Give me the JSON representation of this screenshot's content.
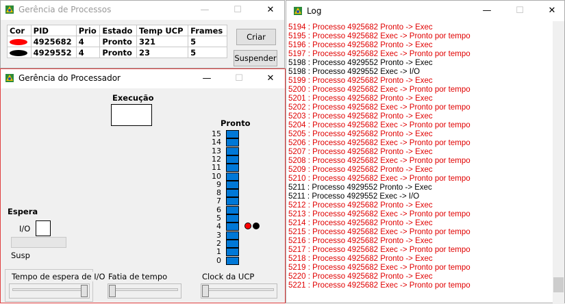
{
  "proc_window": {
    "title": "Gerência de Processos",
    "headers": [
      "Cor",
      "PID",
      "Prio",
      "Estado",
      "Temp UCP",
      "Frames"
    ],
    "rows": [
      {
        "color": "#ff0000",
        "pid": "4925682",
        "prio": "4",
        "estado": "Pronto",
        "temp": "321",
        "frames": "5"
      },
      {
        "color": "#000000",
        "pid": "4929552",
        "prio": "4",
        "estado": "Pronto",
        "temp": "23",
        "frames": "5"
      }
    ],
    "btn_criar": "Criar",
    "btn_suspender": "Suspender"
  },
  "cpu_window": {
    "title": "Gerência do Processador",
    "execucao_label": "Execução",
    "pronto_label": "Pronto",
    "espera_label": "Espera",
    "io_label": "I/O",
    "susp_label": "Susp",
    "queue_numbers": [
      "15",
      "14",
      "13",
      "12",
      "11",
      "10",
      "9",
      "8",
      "7",
      "6",
      "5",
      "4",
      "3",
      "2",
      "1",
      "0"
    ],
    "slider_io_label": "Tempo de espera de I/O",
    "slider_fatia_label": "Fatia de tempo",
    "slider_clock_label": "Clock da UCP"
  },
  "log_window": {
    "title": "Log",
    "lines": [
      {
        "text": "5194 : Processo 4925682 Pronto -> Exec",
        "color": "red"
      },
      {
        "text": "5195 : Processo 4925682 Exec -> Pronto por tempo",
        "color": "red"
      },
      {
        "text": "5196 : Processo 4925682 Pronto -> Exec",
        "color": "red"
      },
      {
        "text": "5197 : Processo 4925682 Exec -> Pronto por tempo",
        "color": "red"
      },
      {
        "text": "5198 : Processo 4929552 Pronto -> Exec",
        "color": "black"
      },
      {
        "text": "5198 : Processo 4929552 Exec -> I/O",
        "color": "black"
      },
      {
        "text": "5199 : Processo 4925682 Pronto -> Exec",
        "color": "red"
      },
      {
        "text": "5200 : Processo 4925682 Exec -> Pronto por tempo",
        "color": "red"
      },
      {
        "text": "5201 : Processo 4925682 Pronto -> Exec",
        "color": "red"
      },
      {
        "text": "5202 : Processo 4925682 Exec -> Pronto por tempo",
        "color": "red"
      },
      {
        "text": "5203 : Processo 4925682 Pronto -> Exec",
        "color": "red"
      },
      {
        "text": "5204 : Processo 4925682 Exec -> Pronto por tempo",
        "color": "red"
      },
      {
        "text": "5205 : Processo 4925682 Pronto -> Exec",
        "color": "red"
      },
      {
        "text": "5206 : Processo 4925682 Exec -> Pronto por tempo",
        "color": "red"
      },
      {
        "text": "5207 : Processo 4925682 Pronto -> Exec",
        "color": "red"
      },
      {
        "text": "5208 : Processo 4925682 Exec -> Pronto por tempo",
        "color": "red"
      },
      {
        "text": "5209 : Processo 4925682 Pronto -> Exec",
        "color": "red"
      },
      {
        "text": "5210 : Processo 4925682 Exec -> Pronto por tempo",
        "color": "red"
      },
      {
        "text": "5211 : Processo 4929552 Pronto -> Exec",
        "color": "black"
      },
      {
        "text": "5211 : Processo 4929552 Exec -> I/O",
        "color": "black"
      },
      {
        "text": "5212 : Processo 4925682 Pronto -> Exec",
        "color": "red"
      },
      {
        "text": "5213 : Processo 4925682 Exec -> Pronto por tempo",
        "color": "red"
      },
      {
        "text": "5214 : Processo 4925682 Pronto -> Exec",
        "color": "red"
      },
      {
        "text": "5215 : Processo 4925682 Exec -> Pronto por tempo",
        "color": "red"
      },
      {
        "text": "5216 : Processo 4925682 Pronto -> Exec",
        "color": "red"
      },
      {
        "text": "5217 : Processo 4925682 Exec -> Pronto por tempo",
        "color": "red"
      },
      {
        "text": "5218 : Processo 4925682 Pronto -> Exec",
        "color": "red"
      },
      {
        "text": "5219 : Processo 4925682 Exec -> Pronto por tempo",
        "color": "red"
      },
      {
        "text": "5220 : Processo 4925682 Pronto -> Exec",
        "color": "red"
      },
      {
        "text": "5221 : Processo 4925682 Exec -> Pronto por tempo",
        "color": "red"
      }
    ]
  },
  "colors": {
    "accent": "#0078d7",
    "log_red": "#e00000"
  }
}
